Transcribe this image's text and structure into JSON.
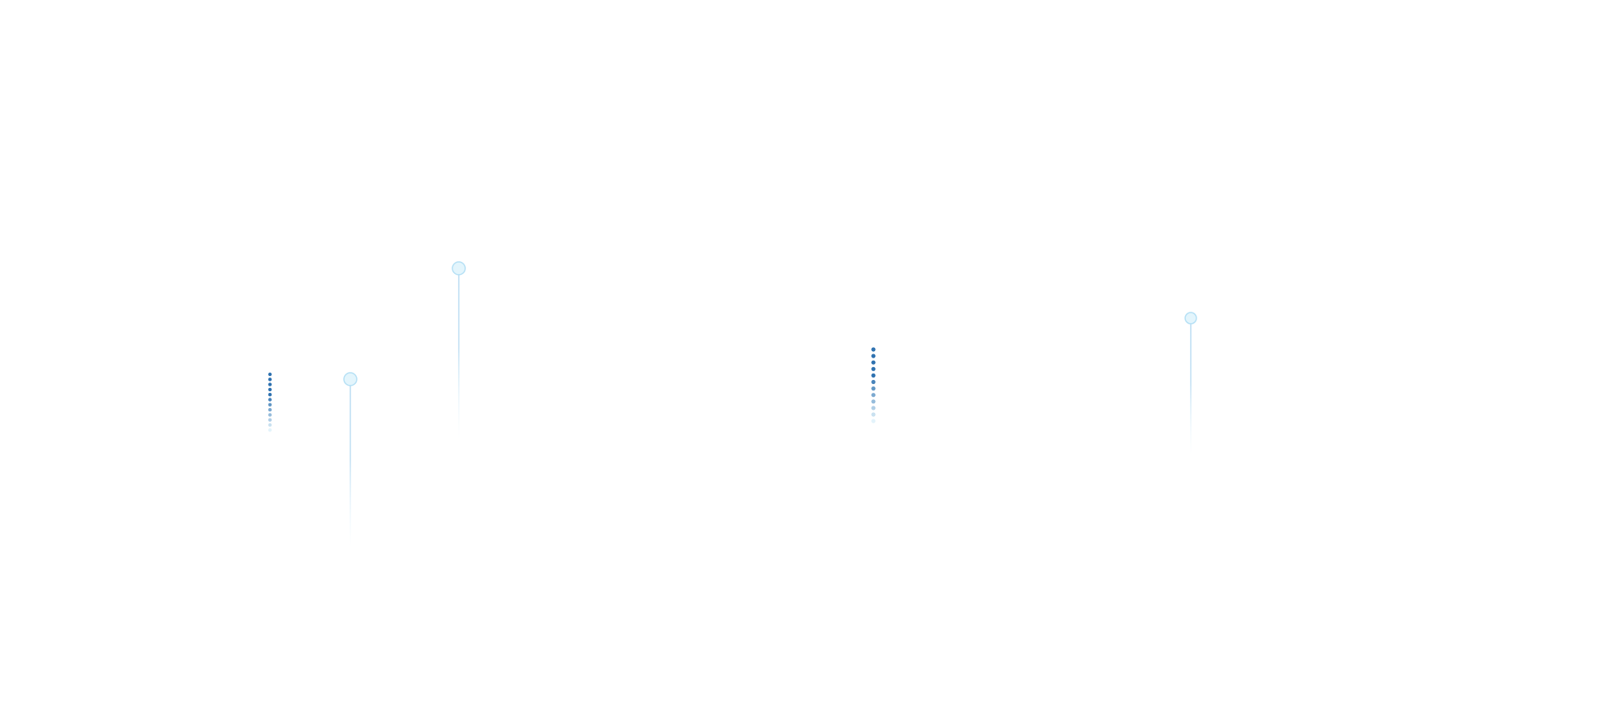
{
  "colors": {
    "background": "#ffffff",
    "dot_dark": "#2f72b0",
    "dot_light": "#e3f3fb",
    "pin_fill": "#e3f5fc",
    "pin_stroke": "#b5e0f5",
    "pin_line": "#b9dcf2"
  },
  "decorations": {
    "loading_indicators": [
      {
        "icon": "vertical-dots-loader-icon",
        "dot_count": 12
      },
      {
        "icon": "vertical-dots-loader-icon",
        "dot_count": 12
      }
    ],
    "pins": [
      {
        "icon": "pin-marker-icon"
      },
      {
        "icon": "pin-marker-icon"
      },
      {
        "icon": "pin-marker-icon"
      }
    ]
  }
}
